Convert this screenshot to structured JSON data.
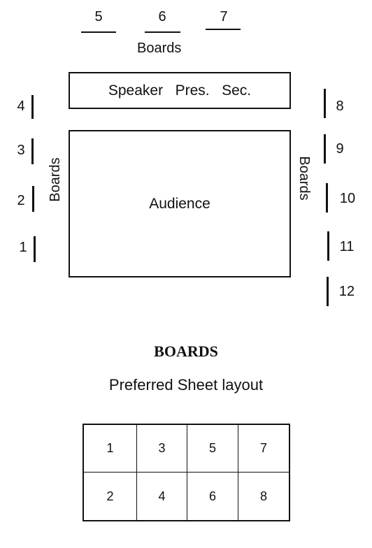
{
  "top_boards": {
    "numbers": [
      "5",
      "6",
      "7"
    ],
    "label": "Boards"
  },
  "left_boards": {
    "numbers": [
      "4",
      "3",
      "2",
      "1"
    ],
    "label": "Boards"
  },
  "right_boards": {
    "numbers": [
      "8",
      "9",
      "10",
      "11",
      "12"
    ],
    "label": "Boards"
  },
  "stage": {
    "speaker": "Speaker",
    "president": "Pres.",
    "secretary": "Sec."
  },
  "audience": {
    "label": "Audience"
  },
  "heading": "BOARDS",
  "subtitle": "Preferred Sheet layout",
  "sheet_layout": {
    "rows": [
      [
        "1",
        "3",
        "5",
        "7"
      ],
      [
        "2",
        "4",
        "6",
        "8"
      ]
    ]
  }
}
